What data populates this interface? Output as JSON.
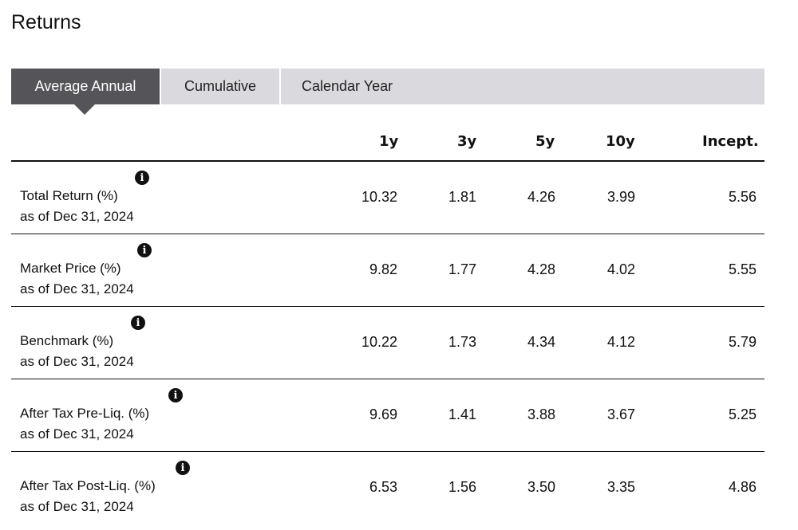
{
  "title": "Returns",
  "tabs": [
    {
      "label": "Average Annual",
      "active": true
    },
    {
      "label": "Cumulative",
      "active": false
    },
    {
      "label": "Calendar Year",
      "active": false
    }
  ],
  "columns": [
    "1y",
    "3y",
    "5y",
    "10y",
    "Incept."
  ],
  "rows": [
    {
      "label": "Total Return (%)",
      "as_of": "as of Dec 31, 2024",
      "values": [
        "10.32",
        "1.81",
        "4.26",
        "3.99",
        "5.56"
      ]
    },
    {
      "label": "Market Price (%)",
      "as_of": "as of Dec 31, 2024",
      "values": [
        "9.82",
        "1.77",
        "4.28",
        "4.02",
        "5.55"
      ]
    },
    {
      "label": "Benchmark (%)",
      "as_of": "as of Dec 31, 2024",
      "values": [
        "10.22",
        "1.73",
        "4.34",
        "4.12",
        "5.79"
      ]
    },
    {
      "label": "After Tax Pre-Liq. (%)",
      "as_of": "as of Dec 31, 2024",
      "values": [
        "9.69",
        "1.41",
        "3.88",
        "3.67",
        "5.25"
      ]
    },
    {
      "label": "After Tax Post-Liq. (%)",
      "as_of": "as of Dec 31, 2024",
      "values": [
        "6.53",
        "1.56",
        "3.50",
        "3.35",
        "4.86"
      ]
    }
  ],
  "icons": {
    "info": "info-icon"
  },
  "colors": {
    "active_tab": "#555559",
    "tab_bar": "#d9d9de",
    "text": "#111111"
  }
}
